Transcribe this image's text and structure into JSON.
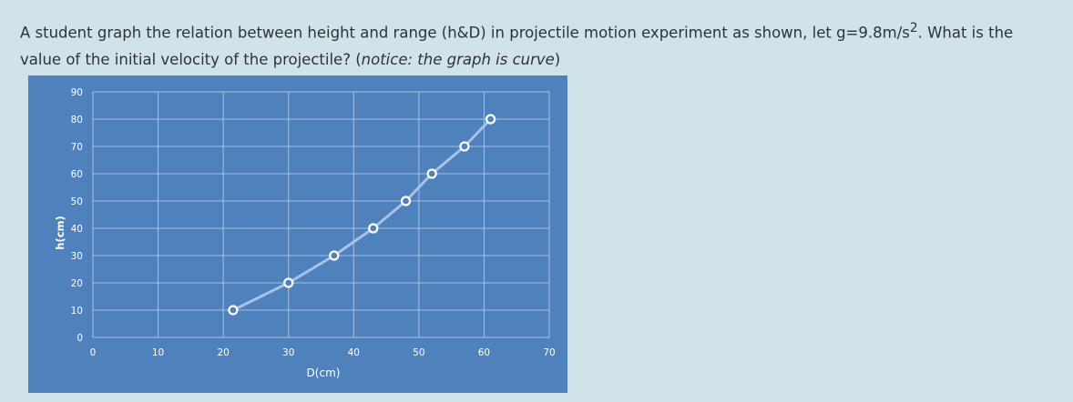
{
  "question": {
    "text_before_sup": "A student graph the relation between height and range (h&D) in projectile motion experiment as shown, let g=9.8m/s",
    "superscript": "2",
    "text_after_sup": ". What is the value of the initial velocity of the projectile? (",
    "notice": "notice: the graph is curve",
    "closing": ")"
  },
  "colors": {
    "page_background": "#cfe3e8",
    "chart_background": "#4f81bd",
    "grid": "#a7c0de",
    "line": "#a9c2e6",
    "marker_fill": "#ffffff",
    "marker_stroke": "#ffffff",
    "text": "#ffffff"
  },
  "chart_data": {
    "type": "line",
    "title": "",
    "xlabel": "D(cm)",
    "ylabel": "h(cm)",
    "xlim": [
      0,
      70
    ],
    "ylim": [
      0,
      90
    ],
    "xticks": [
      0,
      10,
      20,
      30,
      40,
      50,
      60,
      70
    ],
    "yticks": [
      0,
      10,
      20,
      30,
      40,
      50,
      60,
      70,
      80,
      90
    ],
    "grid": true,
    "legend": "none",
    "markers": "hollow-circle",
    "series": [
      {
        "x": [
          21.5,
          30.0,
          37.0,
          43.0,
          48.0,
          52.0,
          57.0,
          61.0
        ],
        "y": [
          10,
          20,
          30,
          40,
          50,
          60,
          70,
          80
        ]
      }
    ]
  }
}
